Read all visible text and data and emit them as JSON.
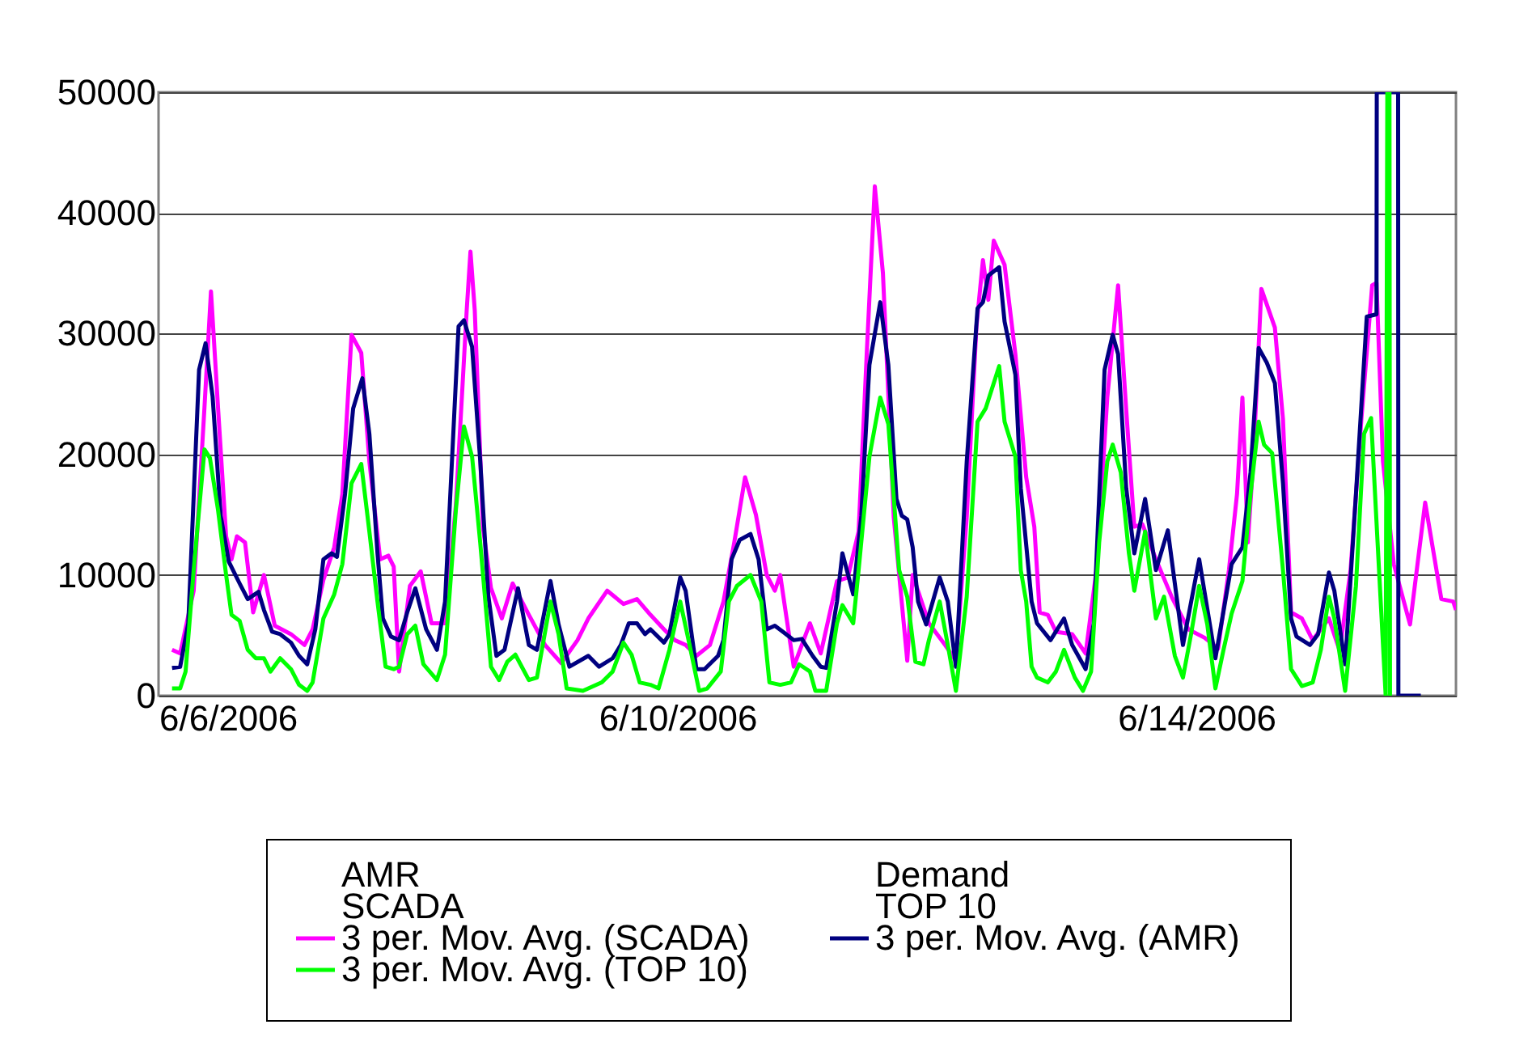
{
  "chart_data": {
    "type": "line",
    "xlim": [
      "2006-06-06T00:00",
      "2006-06-16T00:00"
    ],
    "xticks": [
      {
        "value": "2006-06-06",
        "label": "6/6/2006"
      },
      {
        "value": "2006-06-10",
        "label": "6/10/2006"
      },
      {
        "value": "2006-06-14",
        "label": "6/14/2006"
      }
    ],
    "ylim": [
      0,
      50000
    ],
    "yticks": [
      0,
      10000,
      20000,
      30000,
      40000,
      50000
    ],
    "grid": "y",
    "legend": "bottom",
    "marker": "none",
    "line_style": "solid",
    "annotations": [
      "AMR",
      "Demand",
      "SCADA",
      "TOP 10"
    ],
    "series": [
      {
        "name": "3 per. Mov. Avg. (SCADA)",
        "color": "#ff00ff",
        "x": [
          "2006-06-06T02:30",
          "2006-06-06T04:00",
          "2006-06-06T06:30",
          "2006-06-06T08:30",
          "2006-06-06T09:42",
          "2006-06-06T11:00",
          "2006-06-06T12:30",
          "2006-06-06T13:30",
          "2006-06-06T14:30",
          "2006-06-06T16:00",
          "2006-06-06T17:30",
          "2006-06-06T19:30",
          "2006-06-06T21:30",
          "2006-06-07T00:30",
          "2006-06-07T03:00",
          "2006-06-07T04:30",
          "2006-06-07T06:30",
          "2006-06-07T08:30",
          "2006-06-07T10:00",
          "2006-06-07T11:42",
          "2006-06-07T13:30",
          "2006-06-07T15:00",
          "2006-06-07T17:00",
          "2006-06-07T18:30",
          "2006-06-07T19:30",
          "2006-06-07T20:30",
          "2006-06-07T22:30",
          "2006-06-08T00:30",
          "2006-06-08T02:30",
          "2006-06-08T05:00",
          "2006-06-08T07:00",
          "2006-06-08T09:00",
          "2006-06-08T09:42",
          "2006-06-08T10:30",
          "2006-06-08T12:00",
          "2006-06-08T13:30",
          "2006-06-08T15:30",
          "2006-06-08T17:30",
          "2006-06-08T20:30",
          "2006-06-08T23:30",
          "2006-06-09T02:30",
          "2006-06-09T05:30",
          "2006-06-09T07:30",
          "2006-06-09T11:00",
          "2006-06-09T14:00",
          "2006-06-09T16:30",
          "2006-06-09T19:00",
          "2006-06-09T21:30",
          "2006-06-09T23:30",
          "2006-06-10T01:30",
          "2006-06-10T03:30",
          "2006-06-10T06:00",
          "2006-06-10T08:30",
          "2006-06-10T10:30",
          "2006-06-10T12:30",
          "2006-06-10T14:30",
          "2006-06-10T16:30",
          "2006-06-10T18:00",
          "2006-06-10T19:00",
          "2006-06-10T21:30",
          "2006-06-11T00:30",
          "2006-06-11T02:30",
          "2006-06-11T05:30",
          "2006-06-11T07:30",
          "2006-06-11T09:30",
          "2006-06-11T11:00",
          "2006-06-11T12:30",
          "2006-06-11T14:00",
          "2006-06-11T16:00",
          "2006-06-11T18:30",
          "2006-06-11T19:30",
          "2006-06-11T22:30",
          "2006-06-12T01:30",
          "2006-06-12T03:30",
          "2006-06-12T05:30",
          "2006-06-12T07:18",
          "2006-06-12T08:30",
          "2006-06-12T09:30",
          "2006-06-12T10:30",
          "2006-06-12T12:30",
          "2006-06-12T14:30",
          "2006-06-12T16:30",
          "2006-06-12T18:00",
          "2006-06-12T19:00",
          "2006-06-12T20:30",
          "2006-06-12T22:00",
          "2006-06-13T01:00",
          "2006-06-13T03:30",
          "2006-06-13T05:30",
          "2006-06-13T07:30",
          "2006-06-13T09:30",
          "2006-06-13T11:00",
          "2006-06-13T12:30",
          "2006-06-13T14:00",
          "2006-06-13T16:30",
          "2006-06-13T19:30",
          "2006-06-13T22:30",
          "2006-06-14T01:30",
          "2006-06-14T04:00",
          "2006-06-14T06:00",
          "2006-06-14T07:30",
          "2006-06-14T08:30",
          "2006-06-14T09:30",
          "2006-06-14T10:30",
          "2006-06-14T12:00",
          "2006-06-14T14:30",
          "2006-06-14T16:00",
          "2006-06-14T17:30",
          "2006-06-14T19:30",
          "2006-06-14T21:30",
          "2006-06-15T00:30",
          "2006-06-15T02:30",
          "2006-06-15T04:30",
          "2006-06-15T06:30",
          "2006-06-15T08:30",
          "2006-06-15T09:18",
          "2006-06-15T10:30",
          "2006-06-15T12:30",
          "2006-06-15T15:30",
          "2006-06-15T18:18",
          "2006-06-15T21:18",
          "2006-06-15T23:30",
          "2006-06-16T00:00"
        ],
        "values": [
          3800,
          3500,
          8700,
          23900,
          33500,
          23900,
          13200,
          11300,
          13200,
          12700,
          6900,
          10000,
          5800,
          5100,
          4200,
          5500,
          9600,
          12300,
          16700,
          29900,
          28400,
          19400,
          11300,
          11600,
          10700,
          2000,
          9100,
          10300,
          6000,
          6000,
          15800,
          31900,
          36800,
          31900,
          14000,
          8900,
          6400,
          9300,
          6700,
          4200,
          2700,
          4600,
          6400,
          8700,
          7600,
          8000,
          6700,
          5500,
          4600,
          4200,
          3300,
          4200,
          7800,
          12700,
          18100,
          15000,
          10000,
          8700,
          10000,
          2400,
          6000,
          3500,
          9500,
          9800,
          13600,
          28300,
          42200,
          35000,
          14800,
          2900,
          10000,
          6000,
          4200,
          2900,
          14800,
          30600,
          36100,
          32800,
          37700,
          35700,
          28300,
          18100,
          14000,
          6900,
          6700,
          5300,
          5100,
          3500,
          10400,
          24700,
          34000,
          23700,
          14000,
          14200,
          11300,
          8100,
          5500,
          4800,
          3900,
          10400,
          16700,
          24700,
          12700,
          19400,
          33700,
          30500,
          22900,
          6900,
          6400,
          4600,
          6400,
          3700,
          10400,
          22900,
          34000,
          34200,
          19400,
          10900,
          5900,
          16000,
          8000,
          7800,
          7100
        ]
      },
      {
        "name": "3 per. Mov. Avg. (AMR)",
        "color": "#000080",
        "x": [
          "2006-06-06T02:30",
          "2006-06-06T04:00",
          "2006-06-06T05:30",
          "2006-06-06T07:30",
          "2006-06-06T08:42",
          "2006-06-06T10:00",
          "2006-06-06T11:30",
          "2006-06-06T13:00",
          "2006-06-06T15:00",
          "2006-06-06T16:30",
          "2006-06-06T18:30",
          "2006-06-06T19:30",
          "2006-06-06T21:00",
          "2006-06-06T22:30",
          "2006-06-07T00:30",
          "2006-06-07T02:00",
          "2006-06-07T03:30",
          "2006-06-07T05:00",
          "2006-06-07T06:30",
          "2006-06-07T08:00",
          "2006-06-07T09:00",
          "2006-06-07T10:30",
          "2006-06-07T12:00",
          "2006-06-07T13:42",
          "2006-06-07T15:00",
          "2006-06-07T16:30",
          "2006-06-07T17:30",
          "2006-06-07T19:00",
          "2006-06-07T20:30",
          "2006-06-07T22:00",
          "2006-06-07T23:30",
          "2006-06-08T01:30",
          "2006-06-08T03:30",
          "2006-06-08T05:00",
          "2006-06-08T07:30",
          "2006-06-08T08:30",
          "2006-06-08T10:00",
          "2006-06-08T11:30",
          "2006-06-08T13:00",
          "2006-06-08T14:30",
          "2006-06-08T16:00",
          "2006-06-08T18:30",
          "2006-06-08T20:30",
          "2006-06-08T22:00",
          "2006-06-09T00:30",
          "2006-06-09T02:00",
          "2006-06-09T04:00",
          "2006-06-09T07:30",
          "2006-06-09T09:30",
          "2006-06-09T12:00",
          "2006-06-09T13:30",
          "2006-06-09T15:00",
          "2006-06-09T16:30",
          "2006-06-09T18:00",
          "2006-06-09T19:00",
          "2006-06-09T21:30",
          "2006-06-09T22:30",
          "2006-06-10T00:30",
          "2006-06-10T01:30",
          "2006-06-10T03:30",
          "2006-06-10T05:00",
          "2006-06-10T07:30",
          "2006-06-10T08:30",
          "2006-06-10T10:00",
          "2006-06-10T11:30",
          "2006-06-10T13:30",
          "2006-06-10T15:00",
          "2006-06-10T16:30",
          "2006-06-10T18:00",
          "2006-06-10T19:30",
          "2006-06-10T21:30",
          "2006-06-10T23:00",
          "2006-06-11T01:00",
          "2006-06-11T02:30",
          "2006-06-11T03:30",
          "2006-06-11T05:30",
          "2006-06-11T06:30",
          "2006-06-11T08:30",
          "2006-06-11T10:00",
          "2006-06-11T11:30",
          "2006-06-11T13:30",
          "2006-06-11T15:00",
          "2006-06-11T16:30",
          "2006-06-11T17:30",
          "2006-06-11T18:30",
          "2006-06-11T19:30",
          "2006-06-11T20:30",
          "2006-06-11T22:00",
          "2006-06-12T00:30",
          "2006-06-12T02:00",
          "2006-06-12T03:30",
          "2006-06-12T05:30",
          "2006-06-12T07:30",
          "2006-06-12T08:30",
          "2006-06-12T09:30",
          "2006-06-12T11:30",
          "2006-06-12T12:30",
          "2006-06-12T14:30",
          "2006-06-12T15:30",
          "2006-06-12T17:30",
          "2006-06-12T18:30",
          "2006-06-12T21:00",
          "2006-06-12T23:30",
          "2006-06-13T01:00",
          "2006-06-13T03:30",
          "2006-06-13T05:00",
          "2006-06-13T07:00",
          "2006-06-13T08:30",
          "2006-06-13T09:30",
          "2006-06-13T11:00",
          "2006-06-13T12:30",
          "2006-06-13T14:30",
          "2006-06-13T16:30",
          "2006-06-13T18:42",
          "2006-06-13T21:30",
          "2006-06-14T00:30",
          "2006-06-14T03:30",
          "2006-06-14T06:30",
          "2006-06-14T08:30",
          "2006-06-14T10:00",
          "2006-06-14T11:30",
          "2006-06-14T13:00",
          "2006-06-14T14:30",
          "2006-06-14T16:00",
          "2006-06-14T17:30",
          "2006-06-14T18:30",
          "2006-06-14T21:00",
          "2006-06-14T22:30",
          "2006-06-15T00:30",
          "2006-06-15T01:30",
          "2006-06-15T03:30",
          "2006-06-15T05:30",
          "2006-06-15T07:30",
          "2006-06-15T09:18",
          "2006-06-15T09:21",
          "2006-06-15T13:18",
          "2006-06-15T13:21",
          "2006-06-15T17:30"
        ],
        "values": [
          2300,
          2400,
          6000,
          27000,
          29200,
          24800,
          14900,
          11100,
          9300,
          8000,
          8600,
          7100,
          5300,
          5100,
          4400,
          3300,
          2600,
          5500,
          11300,
          11800,
          11500,
          16700,
          23800,
          26300,
          21700,
          11800,
          6400,
          4900,
          4600,
          6900,
          8900,
          5500,
          3800,
          7800,
          30600,
          31100,
          28900,
          19500,
          8300,
          3300,
          3800,
          8900,
          4200,
          3800,
          9500,
          5900,
          2400,
          3300,
          2400,
          3100,
          4200,
          6000,
          6000,
          5100,
          5500,
          4400,
          5100,
          9800,
          8700,
          2200,
          2200,
          3300,
          4600,
          11300,
          12900,
          13400,
          11300,
          5500,
          5800,
          5300,
          4600,
          4700,
          3300,
          2400,
          2300,
          7800,
          11800,
          8400,
          14900,
          27400,
          32600,
          27400,
          16300,
          14900,
          14600,
          12300,
          7800,
          5900,
          9800,
          7800,
          2400,
          19400,
          32100,
          32600,
          34800,
          35500,
          31000,
          26600,
          17200,
          7800,
          6000,
          4600,
          6400,
          4200,
          2200,
          6000,
          27000,
          29900,
          28300,
          17200,
          11800,
          16300,
          10400,
          13700,
          4200,
          11300,
          3100,
          10900,
          12300,
          18500,
          28800,
          27600,
          25900,
          17600,
          6400,
          4900,
          4200,
          5100,
          10200,
          8700,
          2600,
          16700,
          31400,
          31600,
          50000,
          50000,
          0,
          0
        ]
      },
      {
        "name": "3 per. Mov. Avg. (TOP 10)",
        "color": "#00ff00",
        "x": [
          "2006-06-06T02:30",
          "2006-06-06T04:00",
          "2006-06-06T05:00",
          "2006-06-06T06:30",
          "2006-06-06T08:30",
          "2006-06-06T09:30",
          "2006-06-06T11:00",
          "2006-06-06T12:30",
          "2006-06-06T13:30",
          "2006-06-06T15:00",
          "2006-06-06T16:30",
          "2006-06-06T18:00",
          "2006-06-06T19:30",
          "2006-06-06T20:42",
          "2006-06-06T22:30",
          "2006-06-07T00:30",
          "2006-06-07T02:00",
          "2006-06-07T03:30",
          "2006-06-07T04:30",
          "2006-06-07T06:30",
          "2006-06-07T08:30",
          "2006-06-07T10:00",
          "2006-06-07T11:42",
          "2006-06-07T13:30",
          "2006-06-07T15:00",
          "2006-06-07T16:30",
          "2006-06-07T18:00",
          "2006-06-07T19:30",
          "2006-06-07T20:30",
          "2006-06-07T22:00",
          "2006-06-07T23:30",
          "2006-06-08T01:00",
          "2006-06-08T03:30",
          "2006-06-08T05:00",
          "2006-06-08T07:00",
          "2006-06-08T08:30",
          "2006-06-08T10:00",
          "2006-06-08T11:30",
          "2006-06-08T13:30",
          "2006-06-08T15:00",
          "2006-06-08T16:30",
          "2006-06-08T18:00",
          "2006-06-08T20:30",
          "2006-06-08T22:00",
          "2006-06-09T00:30",
          "2006-06-09T02:00",
          "2006-06-09T03:30",
          "2006-06-09T06:30",
          "2006-06-09T10:00",
          "2006-06-09T12:00",
          "2006-06-09T14:00",
          "2006-06-09T15:30",
          "2006-06-09T17:00",
          "2006-06-09T19:00",
          "2006-06-09T20:30",
          "2006-06-09T22:30",
          "2006-06-10T00:30",
          "2006-06-10T02:00",
          "2006-06-10T04:00",
          "2006-06-10T05:30",
          "2006-06-10T08:00",
          "2006-06-10T09:30",
          "2006-06-10T11:00",
          "2006-06-10T13:30",
          "2006-06-10T15:30",
          "2006-06-10T17:00",
          "2006-06-10T19:00",
          "2006-06-10T21:00",
          "2006-06-10T22:30",
          "2006-06-11T00:30",
          "2006-06-11T01:30",
          "2006-06-11T03:30",
          "2006-06-11T05:30",
          "2006-06-11T06:30",
          "2006-06-11T08:30",
          "2006-06-11T09:30",
          "2006-06-11T11:30",
          "2006-06-11T13:30",
          "2006-06-11T15:00",
          "2006-06-11T17:00",
          "2006-06-11T18:30",
          "2006-06-11T20:00",
          "2006-06-11T21:30",
          "2006-06-11T22:30",
          "2006-06-12T00:30",
          "2006-06-12T02:00",
          "2006-06-12T03:30",
          "2006-06-12T05:30",
          "2006-06-12T07:30",
          "2006-06-12T09:00",
          "2006-06-12T11:30",
          "2006-06-12T12:30",
          "2006-06-12T14:30",
          "2006-06-12T15:30",
          "2006-06-12T16:30",
          "2006-06-12T17:30",
          "2006-06-12T18:30",
          "2006-06-12T20:30",
          "2006-06-12T22:00",
          "2006-06-12T23:30",
          "2006-06-13T01:30",
          "2006-06-13T03:00",
          "2006-06-13T04:30",
          "2006-06-13T06:00",
          "2006-06-13T07:30",
          "2006-06-13T08:30",
          "2006-06-13T10:00",
          "2006-06-13T11:30",
          "2006-06-13T12:30",
          "2006-06-13T14:30",
          "2006-06-13T16:30",
          "2006-06-13T18:00",
          "2006-06-13T20:00",
          "2006-06-13T21:30",
          "2006-06-13T23:00",
          "2006-06-14T00:30",
          "2006-06-14T02:00",
          "2006-06-14T03:30",
          "2006-06-14T05:00",
          "2006-06-14T06:30",
          "2006-06-14T08:30",
          "2006-06-14T10:00",
          "2006-06-14T11:30",
          "2006-06-14T12:30",
          "2006-06-14T14:00",
          "2006-06-14T16:00",
          "2006-06-14T17:30",
          "2006-06-14T19:30",
          "2006-06-14T21:30",
          "2006-06-14T23:00",
          "2006-06-15T00:30",
          "2006-06-15T01:30",
          "2006-06-15T03:30",
          "2006-06-15T05:30",
          "2006-06-15T07:00",
          "2006-06-15T08:18",
          "2006-06-15T09:30",
          "2006-06-15T11:00",
          "2006-06-15T11:18",
          "2006-06-15T11:42",
          "2006-06-15T11:48"
        ],
        "values": [
          600,
          600,
          2000,
          10400,
          20400,
          19700,
          15400,
          10000,
          6700,
          6200,
          3800,
          3100,
          3100,
          2000,
          3100,
          2200,
          900,
          400,
          1100,
          6400,
          8400,
          10900,
          17600,
          19200,
          13600,
          7800,
          2400,
          2200,
          2400,
          5100,
          5800,
          2600,
          1300,
          3400,
          15400,
          22300,
          19800,
          12700,
          2400,
          1300,
          2800,
          3400,
          1300,
          1500,
          7800,
          5100,
          600,
          400,
          1100,
          2000,
          4400,
          3400,
          1100,
          900,
          600,
          3800,
          7800,
          4700,
          400,
          600,
          2000,
          7800,
          9100,
          10000,
          7800,
          1100,
          900,
          1100,
          2600,
          2000,
          400,
          400,
          6000,
          7500,
          6000,
          10400,
          19800,
          24700,
          22500,
          10400,
          8200,
          2800,
          2600,
          4600,
          7800,
          4200,
          400,
          8200,
          22700,
          23800,
          27300,
          22700,
          19800,
          10400,
          7800,
          2400,
          1500,
          1100,
          2000,
          3800,
          1500,
          400,
          2000,
          12700,
          19400,
          20800,
          18500,
          11800,
          8700,
          13600,
          6400,
          8200,
          3300,
          1500,
          5100,
          9100,
          5900,
          600,
          3800,
          6800,
          9500,
          16700,
          22700,
          20800,
          20100,
          10400,
          2200,
          800,
          1100,
          3800,
          8200,
          6400,
          400,
          9100,
          21700,
          23000,
          12700,
          0,
          50000,
          50000,
          0
        ]
      }
    ]
  }
}
